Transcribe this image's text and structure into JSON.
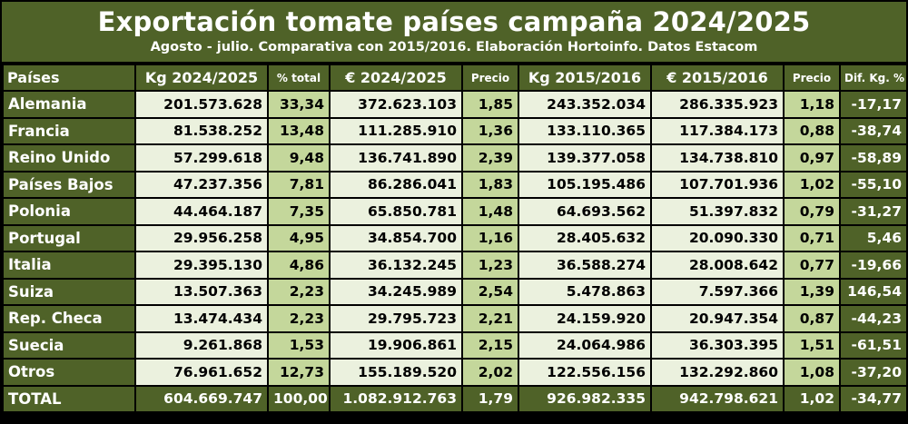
{
  "title": "Exportación tomate países campaña 2024/2025",
  "subtitle": "Agosto - julio. Comparativa con 2015/2016. Elaboración Hortoinfo. Datos Estacom",
  "columns": [
    "Países",
    "Kg 2024/2025",
    "% total",
    "€ 2024/2025",
    "Precio",
    "Kg 2015/2016",
    "€ 2015/2016",
    "Precio",
    "Dif. Kg. %"
  ],
  "rows": [
    [
      "Alemania",
      "201.573.628",
      "33,34",
      "372.623.103",
      "1,85",
      "243.352.034",
      "286.335.923",
      "1,18",
      "-17,17"
    ],
    [
      "Francia",
      "81.538.252",
      "13,48",
      "111.285.910",
      "1,36",
      "133.110.365",
      "117.384.173",
      "0,88",
      "-38,74"
    ],
    [
      "Reino Unido",
      "57.299.618",
      "9,48",
      "136.741.890",
      "2,39",
      "139.377.058",
      "134.738.810",
      "0,97",
      "-58,89"
    ],
    [
      "Países Bajos",
      "47.237.356",
      "7,81",
      "86.286.041",
      "1,83",
      "105.195.486",
      "107.701.936",
      "1,02",
      "-55,10"
    ],
    [
      "Polonia",
      "44.464.187",
      "7,35",
      "65.850.781",
      "1,48",
      "64.693.562",
      "51.397.832",
      "0,79",
      "-31,27"
    ],
    [
      "Portugal",
      "29.956.258",
      "4,95",
      "34.854.700",
      "1,16",
      "28.405.632",
      "20.090.330",
      "0,71",
      "5,46"
    ],
    [
      "Italia",
      "29.395.130",
      "4,86",
      "36.132.245",
      "1,23",
      "36.588.274",
      "28.008.642",
      "0,77",
      "-19,66"
    ],
    [
      "Suiza",
      "13.507.363",
      "2,23",
      "34.245.989",
      "2,54",
      "5.478.863",
      "7.597.366",
      "1,39",
      "146,54"
    ],
    [
      "Rep. Checa",
      "13.474.434",
      "2,23",
      "29.795.723",
      "2,21",
      "24.159.920",
      "20.947.354",
      "0,87",
      "-44,23"
    ],
    [
      "Suecia",
      "9.261.868",
      "1,53",
      "19.906.861",
      "2,15",
      "24.064.986",
      "36.303.395",
      "1,51",
      "-61,51"
    ],
    [
      "Otros",
      "76.961.652",
      "12,73",
      "155.189.520",
      "2,02",
      "122.556.156",
      "132.292.860",
      "1,08",
      "-37,20"
    ]
  ],
  "total": [
    "TOTAL",
    "604.669.747",
    "100,00",
    "1.082.912.763",
    "1,79",
    "926.982.335",
    "942.798.621",
    "1,02",
    "-34,77"
  ],
  "colors": {
    "dark_green": "#4f6228",
    "light_green": "#ebf1de",
    "mid_green": "#c4d79b"
  }
}
